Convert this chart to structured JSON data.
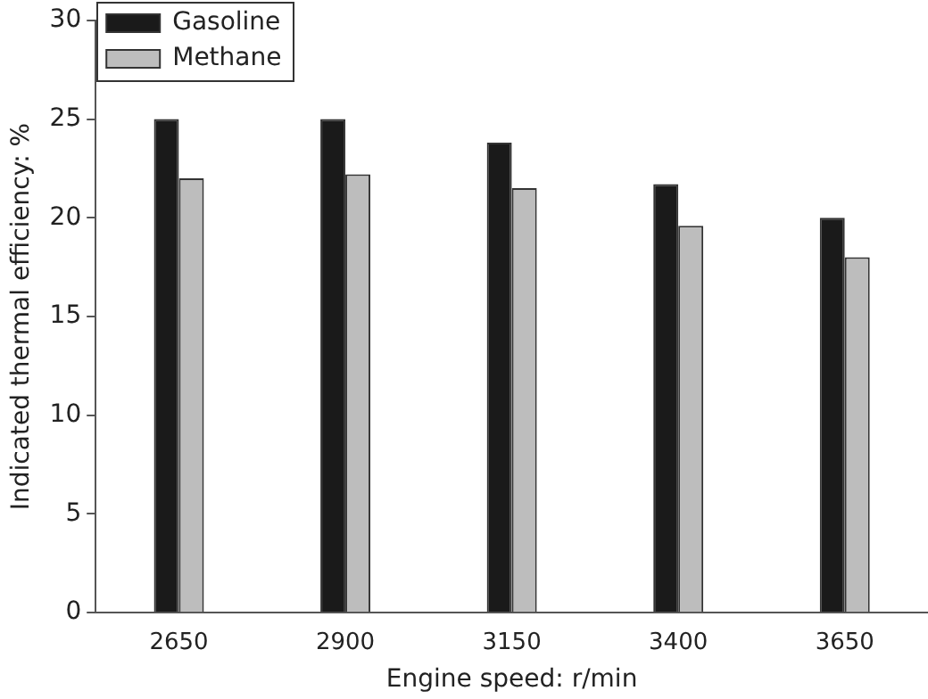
{
  "chart_data": {
    "type": "bar",
    "xlabel": "Engine speed: r/min",
    "ylabel": "Indicated thermal efficiency: %",
    "categories": [
      "2650",
      "2900",
      "3150",
      "3400",
      "3650"
    ],
    "series": [
      {
        "name": "Gasoline",
        "color": "#1a1a1a",
        "values": [
          25,
          25,
          23.8,
          21.7,
          20.0
        ]
      },
      {
        "name": "Methane",
        "color": "#bdbdbd",
        "values": [
          22,
          22.2,
          21.5,
          19.6,
          18.0
        ]
      }
    ],
    "ylim": [
      0,
      30
    ],
    "yticks": [
      0,
      5,
      10,
      15,
      20,
      25,
      30
    ],
    "grid": false,
    "legend": "top left"
  }
}
